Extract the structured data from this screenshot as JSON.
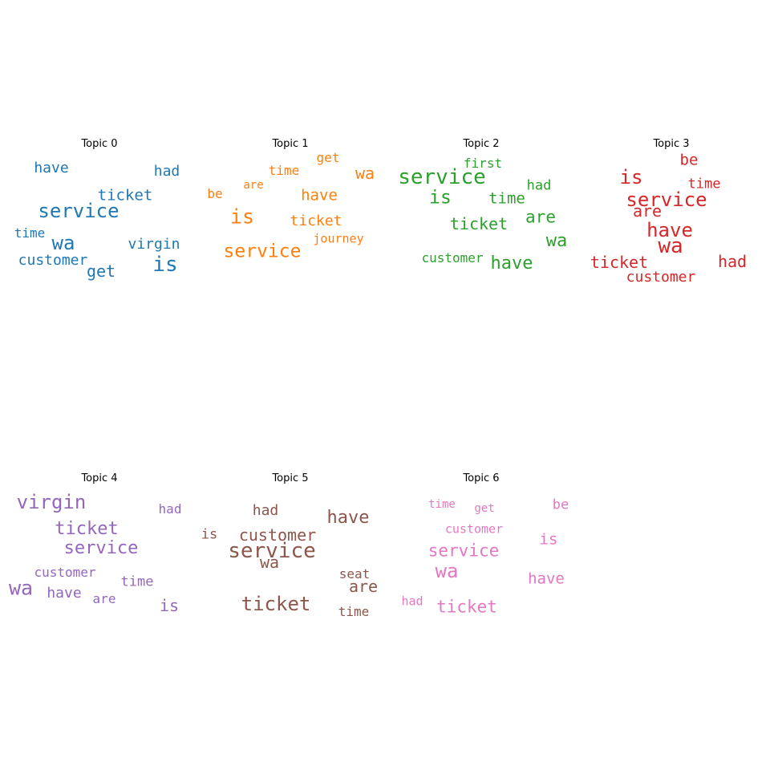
{
  "chart_data": {
    "type": "wordcloud",
    "panels": [
      {
        "title": "Topic 0",
        "color": "#1f77b4",
        "words": [
          "have",
          "had",
          "ticket",
          "service",
          "time",
          "wa",
          "virgin",
          "customer",
          "get",
          "is"
        ]
      },
      {
        "title": "Topic 1",
        "color": "#ff7f0e",
        "words": [
          "get",
          "time",
          "wa",
          "are",
          "be",
          "have",
          "is",
          "ticket",
          "service",
          "journey"
        ]
      },
      {
        "title": "Topic 2",
        "color": "#2ca02c",
        "words": [
          "first",
          "service",
          "had",
          "is",
          "time",
          "ticket",
          "are",
          "wa",
          "customer",
          "have"
        ]
      },
      {
        "title": "Topic 3",
        "color": "#d62728",
        "words": [
          "be",
          "is",
          "time",
          "service",
          "are",
          "have",
          "wa",
          "ticket",
          "had",
          "customer"
        ]
      },
      {
        "title": "Topic 4",
        "color": "#9467bd",
        "words": [
          "virgin",
          "had",
          "ticket",
          "service",
          "customer",
          "time",
          "wa",
          "have",
          "are",
          "is"
        ]
      },
      {
        "title": "Topic 5",
        "color": "#8c564b",
        "words": [
          "had",
          "have",
          "is",
          "customer",
          "service",
          "wa",
          "seat",
          "are",
          "ticket",
          "time"
        ]
      },
      {
        "title": "Topic 6",
        "color": "#e377c2",
        "words": [
          "time",
          "get",
          "be",
          "customer",
          "is",
          "service",
          "wa",
          "have",
          "had",
          "ticket"
        ]
      }
    ]
  }
}
